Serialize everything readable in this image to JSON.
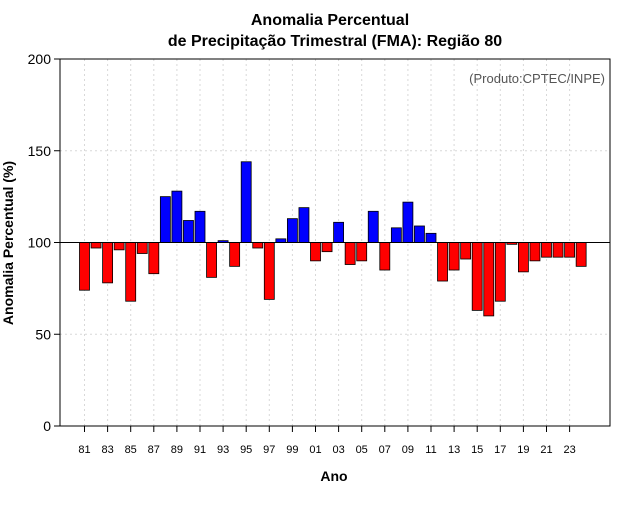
{
  "chart_data": {
    "type": "bar",
    "title_line1": "Anomalia Percentual",
    "title_line2": "de Precipitação Trimestral (FMA): Região 80",
    "xlabel": "Ano",
    "ylabel": "Anomalia Percentual (%)",
    "credit": "(Produto:CPTEC/INPE)",
    "ylim": [
      0,
      200
    ],
    "yticks": [
      0,
      50,
      100,
      150,
      200
    ],
    "baseline": 100,
    "grid": true,
    "colors": {
      "above": "#0000ff",
      "below": "#ff0000",
      "edge": "#000000",
      "grid": "#d8d8d8"
    },
    "x_tick_labels": [
      "81",
      "83",
      "85",
      "87",
      "89",
      "91",
      "93",
      "95",
      "97",
      "99",
      "01",
      "03",
      "05",
      "07",
      "09",
      "11",
      "13",
      "15",
      "17",
      "19",
      "21",
      "23"
    ],
    "categories": [
      "1981",
      "1982",
      "1983",
      "1984",
      "1985",
      "1986",
      "1987",
      "1988",
      "1989",
      "1990",
      "1991",
      "1992",
      "1993",
      "1994",
      "1995",
      "1996",
      "1997",
      "1998",
      "1999",
      "2000",
      "2001",
      "2002",
      "2003",
      "2004",
      "2005",
      "2006",
      "2007",
      "2008",
      "2009",
      "2010",
      "2011",
      "2012",
      "2013",
      "2014",
      "2015",
      "2016",
      "2017",
      "2018",
      "2019",
      "2020",
      "2021",
      "2022",
      "2023",
      "2024"
    ],
    "values": [
      74,
      97,
      78,
      96,
      68,
      94,
      83,
      125,
      128,
      112,
      117,
      81,
      101,
      87,
      144,
      97,
      69,
      102,
      113,
      119,
      90,
      95,
      111,
      88,
      90,
      117,
      85,
      108,
      122,
      109,
      105,
      79,
      85,
      91,
      63,
      60,
      68,
      99,
      84,
      90,
      92,
      92,
      92,
      87
    ]
  }
}
